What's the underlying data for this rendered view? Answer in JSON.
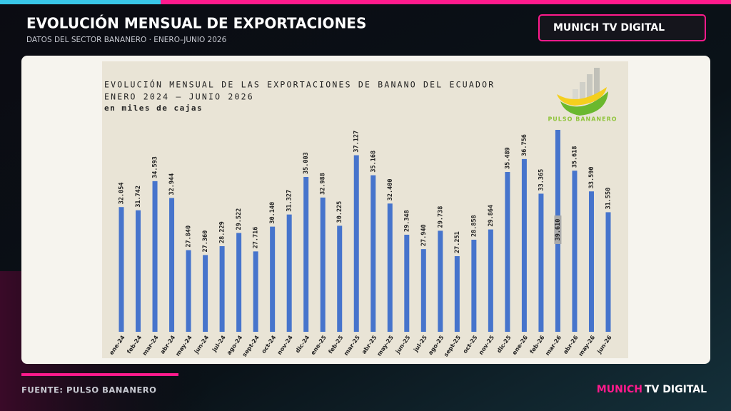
{
  "header": {
    "title": "EVOLUCIÓN MENSUAL DE EXPORTACIONES",
    "subtitle": "DATOS DEL SECTOR BANANERO · ENERO–JUNIO 2026",
    "brand": "MUNICH TV DIGITAL"
  },
  "footer": {
    "source": "FUENTE: PULSO BANANERO",
    "brand_accent": "MUNICH",
    "brand_rest": "TV DIGITAL"
  },
  "logo": "PULSO BANANERO",
  "chart_data": {
    "type": "bar",
    "title": "EVOLUCIÓN MENSUAL DE LAS EXPORTACIONES DE BANANO DEL ECUADOR",
    "subtitle": "ENERO 2024 – JUNIO 2026",
    "units": "en miles de cajas",
    "color": "#4674cc",
    "categories": [
      "ene-24",
      "feb-24",
      "mar-24",
      "abr-24",
      "may-24",
      "jun-24",
      "jul-24",
      "ago-24",
      "sept-24",
      "oct-24",
      "nov-24",
      "dic-24",
      "ene-25",
      "feb-25",
      "mar-25",
      "abr-25",
      "may-25",
      "jun-25",
      "jul-25",
      "ago-25",
      "sept-25",
      "oct-25",
      "nov-25",
      "dic-25",
      "ene-26",
      "feb-26",
      "mar-26",
      "abr-26",
      "may-26",
      "jun-26"
    ],
    "values": [
      32054,
      31742,
      34593,
      32944,
      27840,
      27360,
      28229,
      29522,
      27716,
      30140,
      31327,
      35003,
      32988,
      30225,
      37127,
      35168,
      32400,
      29348,
      27940,
      29738,
      27251,
      28858,
      29864,
      35489,
      36756,
      33365,
      39610,
      35618,
      33590,
      31550
    ],
    "value_labels": [
      "32.054",
      "31.742",
      "34.593",
      "32.944",
      "27.840",
      "27.360",
      "28.229",
      "29.522",
      "27.716",
      "30.140",
      "31.327",
      "35.003",
      "32.988",
      "30.225",
      "37.127",
      "35.168",
      "32.400",
      "29.348",
      "27.940",
      "29.738",
      "27.251",
      "28.858",
      "29.864",
      "35.489",
      "36.756",
      "33.365",
      "39.610",
      "35.618",
      "33.590",
      "31.550"
    ]
  }
}
